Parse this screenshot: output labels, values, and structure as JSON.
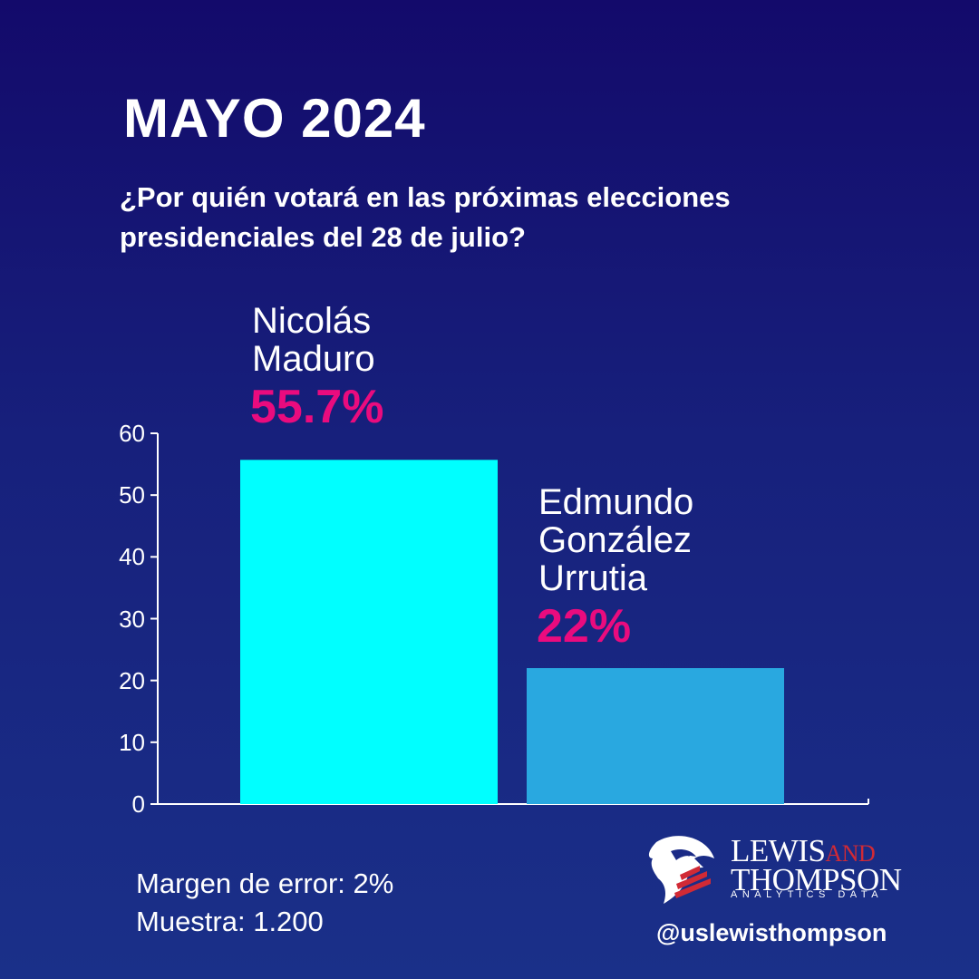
{
  "title": "MAYO 2024",
  "subtitle": "¿Por quién votará en las próximas elecciones presidenciales del 28 de julio?",
  "chart_data": {
    "type": "bar",
    "categories": [
      "Nicolás\nMaduro",
      "Edmundo\nGonzález\nUrrutia"
    ],
    "values": [
      55.7,
      22
    ],
    "value_labels": [
      "55.7%",
      "22%"
    ],
    "ylim": [
      0,
      60
    ],
    "yticks": [
      "0",
      "10",
      "20",
      "30",
      "40",
      "50",
      "60"
    ],
    "bar_colors": [
      "#00ffff",
      "#29a8e0"
    ],
    "grid": false
  },
  "footer": {
    "margin": "Margen de error: 2%",
    "sample": "Muestra: 1.200"
  },
  "logo": {
    "name_line1_a": "LEWIS",
    "name_line1_b": "AND",
    "name_line2": "THOMPSON",
    "tagline": "ANALYTICS DATA"
  },
  "handle": "@uslewisthompson",
  "colors": {
    "accent": "#ea0b7e",
    "logo_red": "#d12a35"
  }
}
